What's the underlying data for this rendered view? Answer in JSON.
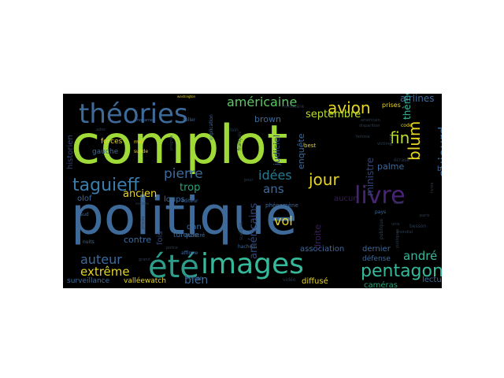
{
  "colors": {
    "background": "#000000",
    "page": "#ffffff",
    "lime": "#a0da39",
    "steel_blue": "#3e6a9a",
    "teal": "#2aa07a",
    "aqua": "#36b89a",
    "yellow": "#e6d522",
    "purple": "#482475",
    "dark_purple": "#3b1d5e",
    "indigo": "#31457f",
    "faint": "#2d3d4e"
  },
  "words": [
    {
      "text": "complot",
      "color": "#a0da39"
    },
    {
      "text": "politique",
      "color": "#3e6a9a"
    },
    {
      "text": "été",
      "color": "#2c9d8a"
    },
    {
      "text": "images",
      "color": "#36b89a"
    },
    {
      "text": "théories",
      "color": "#3e6a9a"
    },
    {
      "text": "livre",
      "color": "#482475"
    },
    {
      "text": "taguieff",
      "color": "#3b7eae"
    },
    {
      "text": "pentagone",
      "color": "#36b89a"
    },
    {
      "text": "avion",
      "color": "#e6d522"
    },
    {
      "text": "jour",
      "color": "#e6d522"
    },
    {
      "text": "américaine",
      "color": "#5cc863"
    },
    {
      "text": "pierre",
      "color": "#3e6a9a"
    },
    {
      "text": "auteur",
      "color": "#3e6a9a"
    },
    {
      "text": "extrême",
      "color": "#e6d522"
    },
    {
      "text": "blum",
      "color": "#e6d522"
    },
    {
      "text": "fin",
      "color": "#b8de29"
    },
    {
      "text": "aujourd",
      "color": "#3e6a9a"
    },
    {
      "text": "idées",
      "color": "#2a788e"
    },
    {
      "text": "ans",
      "color": "#3e6a9a"
    },
    {
      "text": "vol",
      "color": "#e6d522"
    },
    {
      "text": "andré",
      "color": "#36b89a"
    },
    {
      "text": "septembre",
      "color": "#b8de29"
    },
    {
      "text": "airlines",
      "color": "#3e6a9a"
    },
    {
      "text": "bien",
      "color": "#3e6a9a"
    },
    {
      "text": "trop",
      "color": "#2aa07a"
    },
    {
      "text": "ancien",
      "color": "#e6d522"
    },
    {
      "text": "thème",
      "color": "#36b89a"
    },
    {
      "text": "ministre",
      "color": "#31457f"
    },
    {
      "text": "palme",
      "color": "#3e6a9a"
    },
    {
      "text": "américains",
      "color": "#31457f"
    },
    {
      "text": "brown",
      "color": "#3e6a9a"
    },
    {
      "text": "judiciel",
      "color": "#31457f"
    },
    {
      "text": "enquête",
      "color": "#3e6a9a"
    },
    {
      "text": "forces",
      "color": "#e6d522"
    },
    {
      "text": "gauche",
      "color": "#3e6a9a"
    },
    {
      "text": "contre",
      "color": "#3e6a9a"
    },
    {
      "text": "historien",
      "color": "#31457f"
    },
    {
      "text": "olof",
      "color": "#3e6a9a"
    },
    {
      "text": "loups",
      "color": "#3e6a9a"
    },
    {
      "text": "dan",
      "color": "#3e6a9a"
    },
    {
      "text": "fois",
      "color": "#31457f"
    },
    {
      "text": "turquie",
      "color": "#3e6a9a"
    },
    {
      "text": "association",
      "color": "#3e6a9a"
    },
    {
      "text": "dernier",
      "color": "#3e6a9a"
    },
    {
      "text": "défense",
      "color": "#3e6a9a"
    },
    {
      "text": "diffusé",
      "color": "#e6d522"
    },
    {
      "text": "lecture",
      "color": "#3e6a9a"
    },
    {
      "text": "caméras",
      "color": "#2aa07a"
    },
    {
      "text": "surveillance",
      "color": "#3e6a9a"
    },
    {
      "text": "valléewatch",
      "color": "#e6d522"
    },
    {
      "text": "aucun",
      "color": "#3b1d5e"
    },
    {
      "text": "droite",
      "color": "#3b1d5e"
    },
    {
      "text": "ben",
      "color": "#3e6a9a"
    },
    {
      "text": "prises",
      "color": "#e6d522"
    },
    {
      "text": "best",
      "color": "#e6d522"
    },
    {
      "text": "code",
      "color": "#e6d522"
    },
    {
      "text": "mal",
      "color": "#e6d522"
    },
    {
      "text": "suède",
      "color": "#e6d522"
    },
    {
      "text": "éditeur",
      "color": "#3e6a9a"
    },
    {
      "text": "affirme",
      "color": "#3e6a9a"
    },
    {
      "text": "roman",
      "color": "#3e6a9a"
    },
    {
      "text": "montré",
      "color": "#3e6a9a"
    },
    {
      "text": "nuits",
      "color": "#3e6a9a"
    },
    {
      "text": "sud",
      "color": "#3e6a9a"
    },
    {
      "text": "pays",
      "color": "#3e6a9a"
    },
    {
      "text": "hachem",
      "color": "#3e6a9a"
    },
    {
      "text": "phénomène",
      "color": "#3e6a9a"
    },
    {
      "text": "vidéo",
      "color": "#2d3d4e"
    },
    {
      "text": "besson",
      "color": "#2d3d4e"
    },
    {
      "text": "suédois",
      "color": "#2d3d4e"
    },
    {
      "text": "mohamed",
      "color": "#3e6a9a"
    },
    {
      "text": "seller",
      "color": "#3e6a9a"
    },
    {
      "text": "explication",
      "color": "#3e6a9a"
    },
    {
      "text": "français",
      "color": "#2d3d4e"
    },
    {
      "text": "victime",
      "color": "#2d3d4e"
    },
    {
      "text": "femme",
      "color": "#2d3d4e"
    },
    {
      "text": "écrasé",
      "color": "#2d3d4e"
    },
    {
      "text": "public",
      "color": "#2d3d4e"
    },
    {
      "text": "publique",
      "color": "#2d3d4e"
    },
    {
      "text": "publiques",
      "color": "#2d3d4e"
    },
    {
      "text": "unis",
      "color": "#2d3d4e"
    },
    {
      "text": "mondial",
      "color": "#2d3d4e"
    },
    {
      "text": "livres",
      "color": "#2d3d4e"
    },
    {
      "text": "grand",
      "color": "#2d3d4e"
    },
    {
      "text": "police",
      "color": "#2d3d4e"
    },
    {
      "text": "procès",
      "color": "#2d3d4e"
    },
    {
      "text": "progrès",
      "color": "#2d3d4e"
    },
    {
      "text": "washington",
      "color": "#e6d522"
    },
    {
      "text": "disparition",
      "color": "#2d3d4e"
    },
    {
      "text": "américain",
      "color": "#2d3d4e"
    },
    {
      "text": "loin",
      "color": "#2d3d4e"
    },
    {
      "text": "pour",
      "color": "#2d3d4e"
    },
    {
      "text": "ministère",
      "color": "#2d3d4e"
    },
    {
      "text": "sens",
      "color": "#2d3d4e"
    },
    {
      "text": "succès",
      "color": "#2d3d4e"
    },
    {
      "text": "ados",
      "color": "#2d3d4e"
    },
    {
      "text": "paris",
      "color": "#2d3d4e"
    }
  ]
}
